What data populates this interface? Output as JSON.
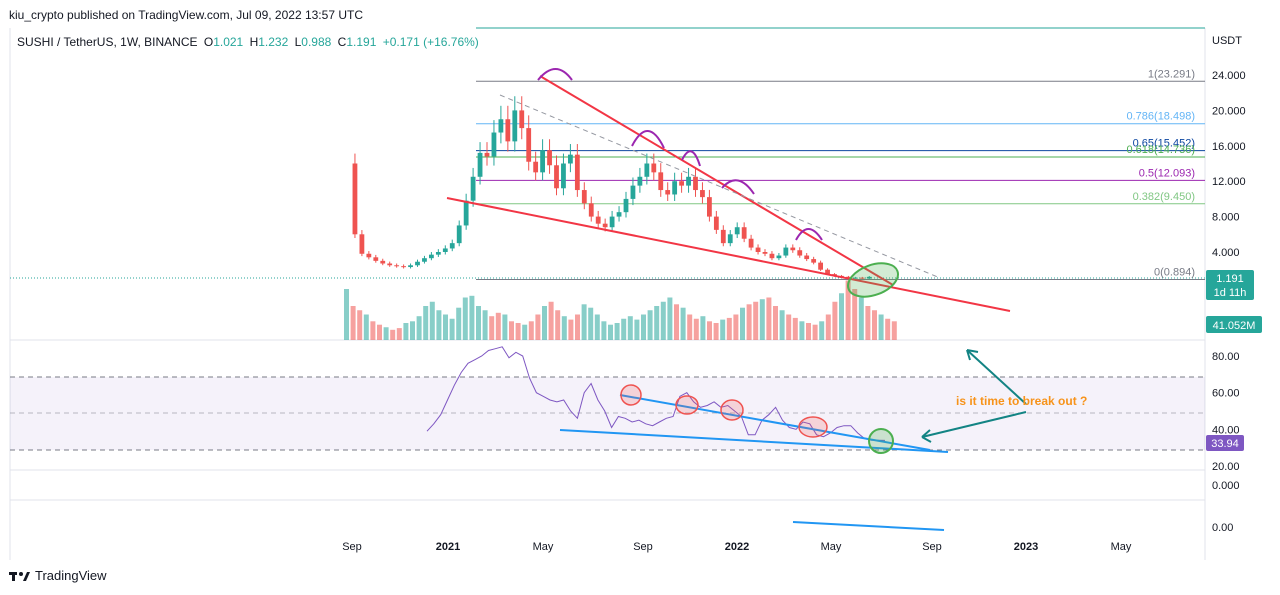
{
  "header": {
    "published_text": "kiu_crypto published on TradingView.com, Jul 09, 2022 13:57 UTC"
  },
  "legend": {
    "symbol": "SUSHI / TetherUS, 1W, BINANCE",
    "o_key": "O",
    "o_val": "1.021",
    "h_key": "H",
    "h_val": "1.232",
    "l_key": "L",
    "l_val": "0.988",
    "c_key": "C",
    "c_val": "1.191",
    "change": "+0.171 (+16.76%)"
  },
  "footer": {
    "brand": "TradingView"
  },
  "colors": {
    "up": "#26a69a",
    "down": "#ef5350",
    "rsi": "#7e57c2",
    "trend_red": "#f23645",
    "trend_blue": "#2196f3",
    "annot_orange": "#f7931a",
    "annot_teal": "#138484"
  },
  "chart_data": {
    "type": "candlestick",
    "price_unit": "USDT",
    "price_axis": {
      "ticks": [
        "24.000",
        "20.000",
        "16.000",
        "12.000",
        "8.000",
        "4.000"
      ],
      "ylim": [
        0,
        27
      ]
    },
    "time_axis": {
      "ticks": [
        "Sep",
        "2021",
        "May",
        "Sep",
        "2022",
        "May",
        "Sep",
        "2023",
        "May"
      ]
    },
    "last_price": {
      "value": "1.191",
      "countdown": "1d 11h"
    },
    "volume": {
      "last": "41.052M",
      "values": [
        60,
        40,
        35,
        30,
        22,
        18,
        15,
        12,
        14,
        20,
        22,
        28,
        40,
        45,
        35,
        30,
        25,
        38,
        50,
        52,
        40,
        35,
        28,
        32,
        30,
        22,
        20,
        18,
        22,
        30,
        40,
        45,
        35,
        28,
        24,
        30,
        42,
        38,
        30,
        22,
        18,
        20,
        25,
        28,
        24,
        30,
        35,
        40,
        45,
        50,
        42,
        38,
        30,
        25,
        28,
        22,
        20,
        24,
        26,
        30,
        38,
        42,
        45,
        48,
        50,
        40,
        35,
        30,
        26,
        22,
        20,
        18,
        22,
        30,
        45,
        55,
        70,
        60,
        50,
        40,
        35,
        30,
        25,
        22
      ]
    },
    "closes": [
      14,
      6,
      3.8,
      3.4,
      3.0,
      2.7,
      2.5,
      2.4,
      2.3,
      2.5,
      2.9,
      3.3,
      3.7,
      4.0,
      4.4,
      5.0,
      7.0,
      9.8,
      12.5,
      15.2,
      14.8,
      17.5,
      19.0,
      16.5,
      20.0,
      18.0,
      14.2,
      13.0,
      15.5,
      13.8,
      11.2,
      14.0,
      15.0,
      11.0,
      9.5,
      8.0,
      7.2,
      6.8,
      8.0,
      8.5,
      10.0,
      11.5,
      12.5,
      14.0,
      13.0,
      11.0,
      10.5,
      12.0,
      11.5,
      12.5,
      11.0,
      10.2,
      8.0,
      6.5,
      5.0,
      6.0,
      6.8,
      5.5,
      4.5,
      4.0,
      3.8,
      3.3,
      3.6,
      4.5,
      4.2,
      3.6,
      3.2,
      2.8,
      2.0,
      1.5,
      1.3,
      1.2,
      1.05,
      1.1,
      1.0,
      1.191
    ],
    "fib_levels": [
      {
        "ratio": "1",
        "price": 23.291,
        "label": "1(23.291)",
        "color": "#787b86"
      },
      {
        "ratio": "0.786",
        "price": 18.498,
        "label": "0.786(18.498)",
        "color": "#64b5f6"
      },
      {
        "ratio": "0.65",
        "price": 15.452,
        "label": "0.65(15.452)",
        "color": "#0d47a1"
      },
      {
        "ratio": "0.618",
        "price": 14.736,
        "label": "0.618(14.736)",
        "color": "#4caf50"
      },
      {
        "ratio": "0.5",
        "price": 12.093,
        "label": "0.5(12.093)",
        "color": "#9c27b0"
      },
      {
        "ratio": "0.382",
        "price": 9.45,
        "label": "0.382(9.450)",
        "color": "#81c784"
      },
      {
        "ratio": "0",
        "price": 0.894,
        "label": "0(0.894)",
        "color": "#787b86"
      }
    ],
    "rsi": {
      "ticks": [
        "80.00",
        "60.00",
        "40.00",
        "20.00"
      ],
      "value": "33.94",
      "values": [
        39,
        43,
        48,
        56,
        64,
        71,
        76,
        78,
        80,
        83,
        84,
        85,
        79,
        82,
        80,
        68,
        60,
        58,
        56,
        55,
        56,
        50,
        46,
        60,
        65,
        56,
        50,
        41,
        47,
        46,
        44,
        45,
        43,
        42,
        44,
        46,
        47,
        58,
        60,
        55,
        52,
        53,
        55,
        52,
        53,
        50,
        47,
        37,
        37,
        45,
        48,
        52,
        45,
        41,
        40,
        44,
        43,
        37,
        36,
        38,
        41,
        42,
        42,
        38,
        35,
        34,
        34,
        33.94
      ]
    },
    "lower_pane": {
      "ticks": [
        "0.000",
        "0.00"
      ]
    },
    "annotations": {
      "question": "is it time to break out ?"
    }
  }
}
